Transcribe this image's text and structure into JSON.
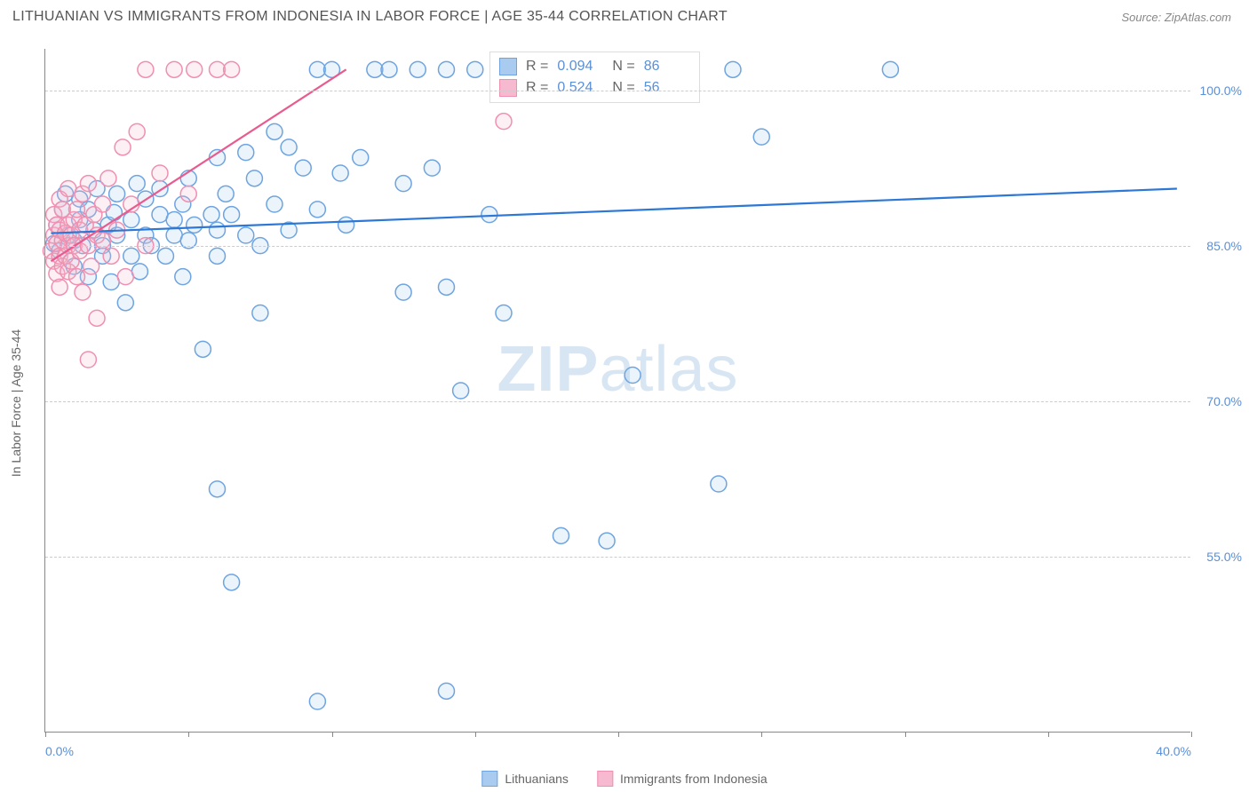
{
  "header": {
    "title": "LITHUANIAN VS IMMIGRANTS FROM INDONESIA IN LABOR FORCE | AGE 35-44 CORRELATION CHART",
    "source": "Source: ZipAtlas.com"
  },
  "chart": {
    "type": "scatter",
    "y_axis_label": "In Labor Force | Age 35-44",
    "xlim": [
      0,
      40
    ],
    "ylim": [
      38,
      104
    ],
    "ytick_values": [
      55,
      70,
      85,
      100
    ],
    "ytick_labels": [
      "55.0%",
      "70.0%",
      "85.0%",
      "100.0%"
    ],
    "xtick_values": [
      0,
      5,
      10,
      15,
      20,
      25,
      30,
      35,
      40
    ],
    "xtick_first_label": "0.0%",
    "xtick_last_label": "40.0%",
    "grid_color": "#cccccc",
    "axis_color": "#888888",
    "background_color": "#ffffff",
    "tick_label_color": "#5b8fd6",
    "marker_radius": 9,
    "marker_stroke_width": 1.5,
    "marker_fill_opacity": 0.22,
    "line_width": 2.2,
    "series": [
      {
        "name": "Lithuanians",
        "color_stroke": "#6ea4e0",
        "color_fill": "#a9cbef",
        "line_color": "#2d78d6",
        "R": "0.094",
        "N": "86",
        "trend": {
          "x1": 0.2,
          "y1": 86.2,
          "x2": 39.5,
          "y2": 90.5
        },
        "points": [
          [
            0.3,
            85.2
          ],
          [
            0.4,
            87
          ],
          [
            0.5,
            84.5
          ],
          [
            0.6,
            88.5
          ],
          [
            0.8,
            86
          ],
          [
            0.7,
            90
          ],
          [
            1,
            85.5
          ],
          [
            1,
            83
          ],
          [
            1.2,
            87.5
          ],
          [
            1.2,
            89.5
          ],
          [
            1.3,
            85
          ],
          [
            1.5,
            88.5
          ],
          [
            1.5,
            82
          ],
          [
            1.7,
            86.5
          ],
          [
            1.8,
            90.5
          ],
          [
            2,
            85
          ],
          [
            2,
            84
          ],
          [
            2.2,
            87
          ],
          [
            2.3,
            81.5
          ],
          [
            2.4,
            88.2
          ],
          [
            2.5,
            90
          ],
          [
            2.5,
            86
          ],
          [
            3,
            87.5
          ],
          [
            3,
            84
          ],
          [
            3.2,
            91
          ],
          [
            3.3,
            82.5
          ],
          [
            2.8,
            79.5
          ],
          [
            3.5,
            86
          ],
          [
            3.5,
            89.5
          ],
          [
            3.7,
            85
          ],
          [
            4,
            88
          ],
          [
            4,
            90.5
          ],
          [
            4.2,
            84
          ],
          [
            4.5,
            87.5
          ],
          [
            4.5,
            86
          ],
          [
            4.8,
            89
          ],
          [
            4.8,
            82
          ],
          [
            5,
            91.5
          ],
          [
            5,
            85.5
          ],
          [
            5.2,
            87
          ],
          [
            5.5,
            75
          ],
          [
            5.8,
            88
          ],
          [
            6,
            86.5
          ],
          [
            6,
            93.5
          ],
          [
            6.3,
            90
          ],
          [
            6,
            84
          ],
          [
            6.5,
            88
          ],
          [
            7,
            94
          ],
          [
            7,
            86
          ],
          [
            7.3,
            91.5
          ],
          [
            7.5,
            85
          ],
          [
            7.5,
            78.5
          ],
          [
            8,
            96
          ],
          [
            8,
            89
          ],
          [
            8.5,
            94.5
          ],
          [
            8.5,
            86.5
          ],
          [
            9,
            92.5
          ],
          [
            9.5,
            102
          ],
          [
            9.5,
            88.5
          ],
          [
            6,
            61.5
          ],
          [
            6.5,
            52.5
          ],
          [
            10,
            102
          ],
          [
            10.3,
            92
          ],
          [
            10.5,
            87
          ],
          [
            11,
            93.5
          ],
          [
            11.5,
            102
          ],
          [
            9.5,
            41
          ],
          [
            12,
            102
          ],
          [
            12.5,
            80.5
          ],
          [
            12.5,
            91
          ],
          [
            13,
            102
          ],
          [
            13.5,
            92.5
          ],
          [
            14,
            81
          ],
          [
            14,
            102
          ],
          [
            14.5,
            71
          ],
          [
            15,
            102
          ],
          [
            15.5,
            88
          ],
          [
            16,
            78.5
          ],
          [
            14,
            42
          ],
          [
            18,
            57
          ],
          [
            19.6,
            56.5
          ],
          [
            20.5,
            72.5
          ],
          [
            23.5,
            62
          ],
          [
            24,
            102
          ],
          [
            25,
            95.5
          ],
          [
            29.5,
            102
          ]
        ]
      },
      {
        "name": "Immigrants from Indonesia",
        "color_stroke": "#f08fb0",
        "color_fill": "#f6b9cf",
        "line_color": "#e95a8e",
        "R": "0.524",
        "N": "56",
        "trend": {
          "x1": 0.2,
          "y1": 83.5,
          "x2": 10.5,
          "y2": 102
        },
        "points": [
          [
            0.2,
            84.5
          ],
          [
            0.3,
            86
          ],
          [
            0.3,
            83.5
          ],
          [
            0.3,
            88
          ],
          [
            0.4,
            85.2
          ],
          [
            0.4,
            82.3
          ],
          [
            0.4,
            87
          ],
          [
            0.5,
            84
          ],
          [
            0.5,
            86.5
          ],
          [
            0.5,
            89.5
          ],
          [
            0.5,
            81
          ],
          [
            0.6,
            85.5
          ],
          [
            0.6,
            83
          ],
          [
            0.6,
            88.5
          ],
          [
            0.7,
            86.2
          ],
          [
            0.7,
            84
          ],
          [
            0.8,
            87
          ],
          [
            0.8,
            85
          ],
          [
            0.8,
            82.5
          ],
          [
            0.8,
            90.5
          ],
          [
            0.9,
            86
          ],
          [
            0.9,
            83.5
          ],
          [
            1,
            87.5
          ],
          [
            1,
            85
          ],
          [
            1.1,
            88.5
          ],
          [
            1.1,
            82
          ],
          [
            1.2,
            86.5
          ],
          [
            1.2,
            84.5
          ],
          [
            1.3,
            90
          ],
          [
            1.3,
            80.5
          ],
          [
            1.4,
            87
          ],
          [
            1.5,
            85
          ],
          [
            1.5,
            91
          ],
          [
            1.6,
            83
          ],
          [
            1.7,
            88
          ],
          [
            1.8,
            86
          ],
          [
            1.8,
            78
          ],
          [
            1.5,
            74
          ],
          [
            2,
            89
          ],
          [
            2,
            85.5
          ],
          [
            2.2,
            91.5
          ],
          [
            2.3,
            84
          ],
          [
            2.5,
            86.5
          ],
          [
            2.7,
            94.5
          ],
          [
            2.8,
            82
          ],
          [
            3,
            89
          ],
          [
            3.2,
            96
          ],
          [
            3.5,
            85
          ],
          [
            3.5,
            102
          ],
          [
            4,
            92
          ],
          [
            4.5,
            102
          ],
          [
            5,
            90
          ],
          [
            5.2,
            102
          ],
          [
            6,
            102
          ],
          [
            6.5,
            102
          ],
          [
            16,
            97
          ]
        ]
      }
    ]
  },
  "stats_box": {
    "rows": [
      {
        "sw_fill": "#a9cbef",
        "sw_stroke": "#6ea4e0",
        "R_label": "R =",
        "R": "0.094",
        "N_label": "N =",
        "N": "86"
      },
      {
        "sw_fill": "#f6b9cf",
        "sw_stroke": "#f08fb0",
        "R_label": "R =",
        "R": "0.524",
        "N_label": "N =",
        "N": "56"
      }
    ]
  },
  "legend_bottom": [
    {
      "label": "Lithuanians",
      "fill": "#a9cbef",
      "stroke": "#6ea4e0"
    },
    {
      "label": "Immigrants from Indonesia",
      "fill": "#f6b9cf",
      "stroke": "#f08fb0"
    }
  ],
  "watermark": {
    "part1": "ZIP",
    "part2": "atlas"
  }
}
